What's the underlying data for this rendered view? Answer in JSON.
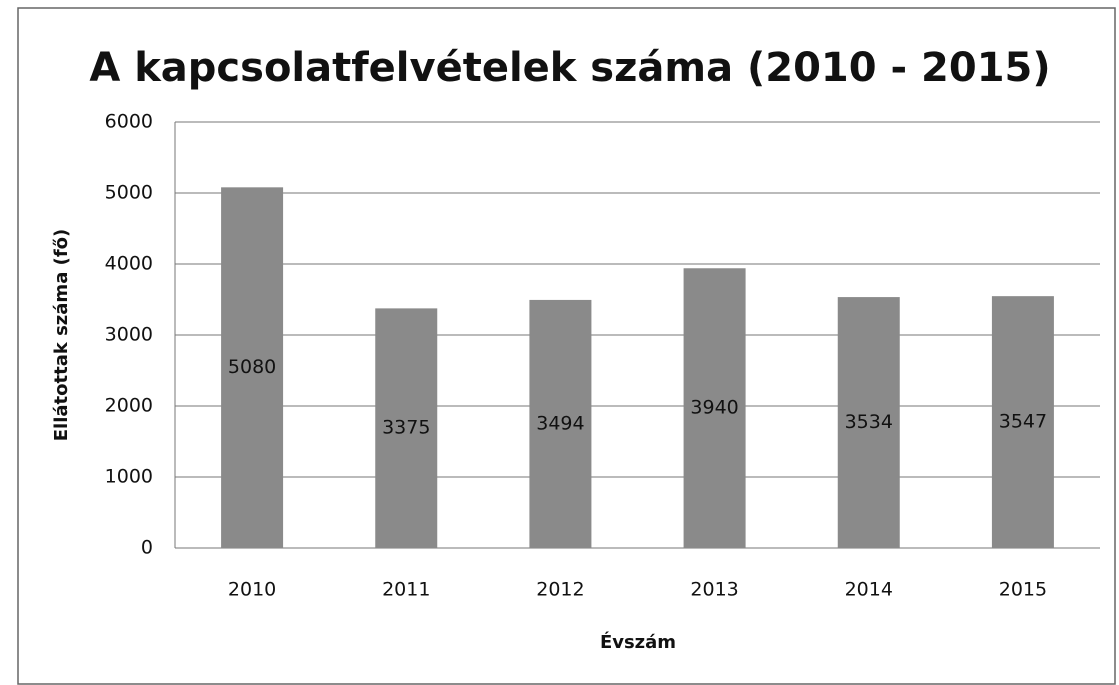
{
  "chart_data": {
    "type": "bar",
    "title": "A kapcsolatfelvételek száma (2010 - 2015)",
    "x_label": "Évszám",
    "y_label": "Ellátottak száma (fő)",
    "categories": [
      "2010",
      "2011",
      "2012",
      "2013",
      "2014",
      "2015"
    ],
    "values": [
      5080,
      3375,
      3494,
      3940,
      3534,
      3547
    ],
    "color": "#8a8a8a",
    "ylim": [
      0,
      6000
    ],
    "yticks": [
      0,
      1000,
      2000,
      3000,
      4000,
      5000,
      6000
    ],
    "grid": true
  }
}
